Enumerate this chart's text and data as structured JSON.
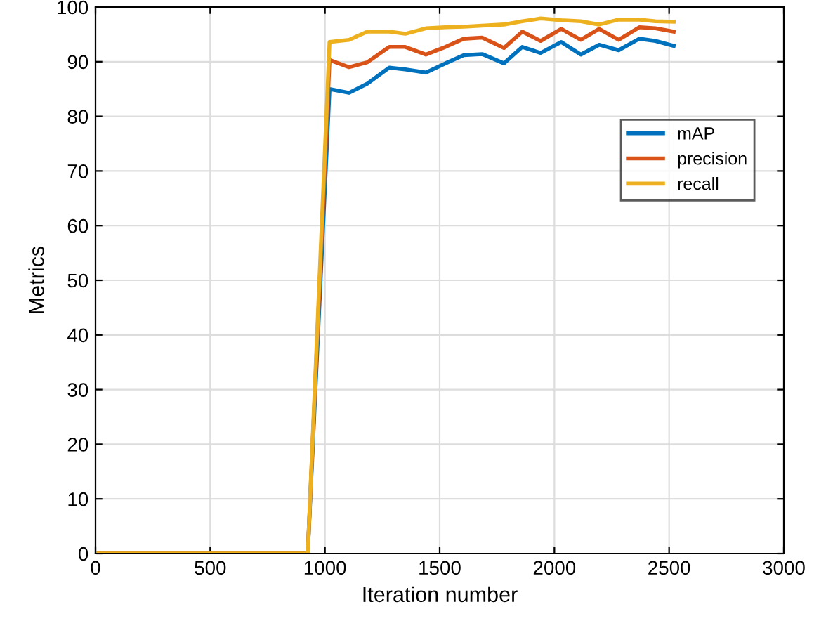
{
  "chart_data": {
    "type": "line",
    "xlabel": "Iteration number",
    "ylabel": "Metrics",
    "x": [
      0,
      925,
      1020,
      1105,
      1185,
      1280,
      1350,
      1440,
      1525,
      1605,
      1685,
      1780,
      1860,
      1940,
      2030,
      2115,
      2195,
      2280,
      2370,
      2440,
      2520
    ],
    "series": [
      {
        "name": "mAP",
        "color": "#0072bd",
        "values": [
          0,
          0,
          85.0,
          84.3,
          86.0,
          88.9,
          88.6,
          88.0,
          89.7,
          91.2,
          91.4,
          89.7,
          92.7,
          91.6,
          93.6,
          91.3,
          93.1,
          92.1,
          94.2,
          93.8,
          92.9
        ]
      },
      {
        "name": "precision",
        "color": "#d95319",
        "values": [
          0,
          0,
          90.3,
          89.0,
          89.9,
          92.7,
          92.7,
          91.3,
          92.7,
          94.2,
          94.4,
          92.5,
          95.5,
          93.8,
          96.0,
          94.0,
          96.0,
          94.0,
          96.3,
          96.1,
          95.5
        ]
      },
      {
        "name": "recall",
        "color": "#edb120",
        "values": [
          0,
          0,
          93.6,
          94.0,
          95.5,
          95.5,
          95.1,
          96.1,
          96.3,
          96.4,
          96.6,
          96.8,
          97.4,
          97.9,
          97.6,
          97.4,
          96.8,
          97.7,
          97.7,
          97.4,
          97.3
        ]
      }
    ],
    "xlim": [
      0,
      3000
    ],
    "xticks": [
      0,
      500,
      1000,
      1500,
      2000,
      2500,
      3000
    ],
    "ylim": [
      0,
      100
    ],
    "yticks": [
      0,
      10,
      20,
      30,
      40,
      50,
      60,
      70,
      80,
      90,
      100
    ],
    "grid": true,
    "legend": "right",
    "line_style": "solid",
    "marker": "none"
  }
}
